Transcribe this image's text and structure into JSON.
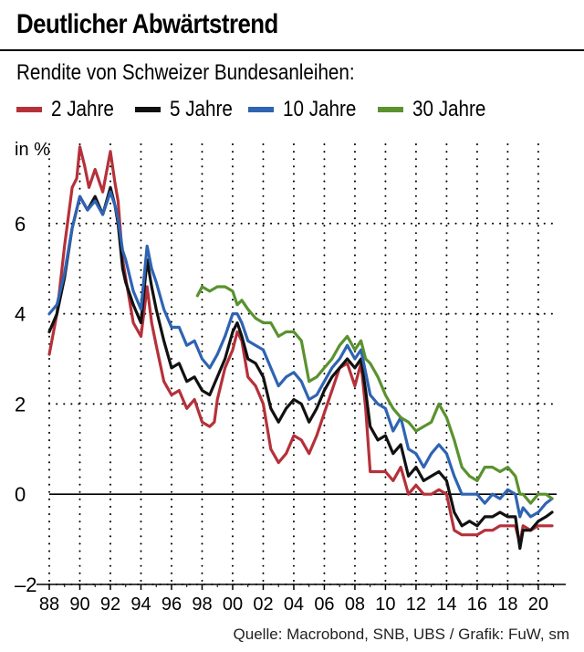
{
  "title": "Deutlicher Abwärtstrend",
  "subtitle": "Rendite von Schweizer Bundesanleihen:",
  "source": "Quelle:  Macrobond, SNB, UBS / Grafik: FuW, sm",
  "chart_data": {
    "type": "line",
    "ylabel": "in %",
    "ylim": [
      -2,
      8
    ],
    "yticks": [
      -2,
      0,
      2,
      4,
      6
    ],
    "ytick_labels": [
      "–2",
      "0",
      "2",
      "4",
      "6"
    ],
    "xlim": [
      1988,
      2021.2
    ],
    "xticks": [
      1988,
      1990,
      1992,
      1994,
      1996,
      1998,
      2000,
      2002,
      2004,
      2006,
      2008,
      2010,
      2012,
      2014,
      2016,
      2018,
      2020
    ],
    "xtick_labels": [
      "88",
      "90",
      "92",
      "94",
      "96",
      "98",
      "00",
      "02",
      "04",
      "06",
      "08",
      "10",
      "12",
      "14",
      "16",
      "18",
      "20"
    ],
    "grid": "dotted",
    "legend_position": "top",
    "series": [
      {
        "name": "2 Jahre",
        "color": "#b5313a",
        "x": [
          1988.0,
          1988.5,
          1989.0,
          1989.5,
          1989.8,
          1990.0,
          1990.3,
          1990.6,
          1991.0,
          1991.5,
          1992.0,
          1992.3,
          1992.5,
          1992.8,
          1993.0,
          1993.5,
          1994.0,
          1994.4,
          1994.7,
          1995.0,
          1995.5,
          1996.0,
          1996.5,
          1997.0,
          1997.5,
          1998.0,
          1998.5,
          1998.8,
          1999.0,
          1999.5,
          2000.0,
          2000.3,
          2000.6,
          2001.0,
          2001.5,
          2002.0,
          2002.5,
          2003.0,
          2003.5,
          2004.0,
          2004.5,
          2005.0,
          2005.5,
          2006.0,
          2006.5,
          2007.0,
          2007.5,
          2008.0,
          2008.4,
          2008.7,
          2009.0,
          2009.5,
          2010.0,
          2010.5,
          2011.0,
          2011.5,
          2012.0,
          2012.5,
          2013.0,
          2013.5,
          2014.0,
          2014.5,
          2015.0,
          2015.5,
          2016.0,
          2016.5,
          2017.0,
          2017.5,
          2018.0,
          2018.5,
          2018.8,
          2019.0,
          2019.5,
          2020.0,
          2020.5,
          2020.9
        ],
        "y": [
          3.1,
          4.0,
          5.5,
          6.8,
          7.0,
          7.7,
          7.3,
          6.8,
          7.2,
          6.7,
          7.6,
          6.9,
          6.5,
          5.2,
          4.8,
          3.8,
          3.5,
          4.6,
          3.8,
          3.3,
          2.5,
          2.2,
          2.3,
          1.9,
          2.1,
          1.6,
          1.5,
          1.6,
          2.1,
          2.8,
          3.2,
          3.6,
          3.4,
          2.6,
          2.4,
          2.0,
          1.0,
          0.7,
          0.9,
          1.3,
          1.2,
          0.9,
          1.3,
          1.8,
          2.3,
          2.8,
          2.9,
          2.4,
          2.9,
          1.9,
          0.5,
          0.5,
          0.5,
          0.3,
          0.6,
          0.0,
          0.2,
          0.0,
          0.0,
          0.1,
          0.0,
          -0.8,
          -0.9,
          -0.9,
          -0.9,
          -0.8,
          -0.8,
          -0.7,
          -0.7,
          -0.7,
          -1.1,
          -0.7,
          -0.8,
          -0.7,
          -0.7,
          -0.7
        ]
      },
      {
        "name": "5 Jahre",
        "color": "#111111",
        "x": [
          1988.0,
          1988.5,
          1989.0,
          1989.5,
          1990.0,
          1990.5,
          1991.0,
          1991.5,
          1992.0,
          1992.3,
          1992.5,
          1992.8,
          1993.0,
          1993.5,
          1994.0,
          1994.4,
          1994.7,
          1995.0,
          1995.5,
          1996.0,
          1996.5,
          1997.0,
          1997.5,
          1998.0,
          1998.5,
          1999.0,
          1999.5,
          2000.0,
          2000.3,
          2000.6,
          2001.0,
          2001.5,
          2002.0,
          2002.5,
          2003.0,
          2003.5,
          2004.0,
          2004.5,
          2005.0,
          2005.5,
          2006.0,
          2006.5,
          2007.0,
          2007.5,
          2008.0,
          2008.4,
          2008.7,
          2009.0,
          2009.5,
          2010.0,
          2010.5,
          2011.0,
          2011.5,
          2012.0,
          2012.5,
          2013.0,
          2013.5,
          2014.0,
          2014.5,
          2015.0,
          2015.5,
          2016.0,
          2016.5,
          2017.0,
          2017.5,
          2018.0,
          2018.5,
          2018.8,
          2019.0,
          2019.5,
          2020.0,
          2020.5,
          2020.9
        ],
        "y": [
          3.6,
          4.0,
          4.8,
          5.9,
          6.6,
          6.3,
          6.6,
          6.2,
          6.8,
          6.4,
          6.0,
          5.0,
          4.7,
          4.2,
          3.8,
          5.2,
          4.6,
          4.1,
          3.4,
          2.8,
          2.9,
          2.5,
          2.6,
          2.3,
          2.2,
          2.6,
          3.0,
          3.6,
          3.8,
          3.5,
          3.0,
          2.9,
          2.6,
          1.9,
          1.6,
          1.9,
          2.1,
          2.0,
          1.6,
          1.9,
          2.3,
          2.6,
          2.8,
          3.0,
          2.8,
          3.0,
          2.3,
          1.5,
          1.2,
          1.3,
          0.9,
          1.1,
          0.4,
          0.6,
          0.3,
          0.4,
          0.5,
          0.3,
          -0.4,
          -0.7,
          -0.6,
          -0.7,
          -0.5,
          -0.5,
          -0.4,
          -0.5,
          -0.5,
          -1.2,
          -0.8,
          -0.8,
          -0.6,
          -0.5,
          -0.4
        ]
      },
      {
        "name": "10 Jahre",
        "color": "#2f63b3",
        "x": [
          1988.0,
          1988.5,
          1989.0,
          1989.5,
          1990.0,
          1990.5,
          1991.0,
          1991.5,
          1992.0,
          1992.3,
          1992.5,
          1992.8,
          1993.0,
          1993.5,
          1994.0,
          1994.4,
          1994.7,
          1995.0,
          1995.5,
          1996.0,
          1996.5,
          1997.0,
          1997.5,
          1998.0,
          1998.5,
          1999.0,
          1999.5,
          2000.0,
          2000.3,
          2000.6,
          2001.0,
          2001.5,
          2002.0,
          2002.5,
          2003.0,
          2003.5,
          2004.0,
          2004.5,
          2005.0,
          2005.5,
          2006.0,
          2006.5,
          2007.0,
          2007.5,
          2008.0,
          2008.4,
          2008.7,
          2009.0,
          2009.5,
          2010.0,
          2010.5,
          2011.0,
          2011.5,
          2012.0,
          2012.5,
          2013.0,
          2013.5,
          2014.0,
          2014.5,
          2015.0,
          2015.5,
          2016.0,
          2016.5,
          2017.0,
          2017.5,
          2018.0,
          2018.5,
          2018.8,
          2019.0,
          2019.5,
          2020.0,
          2020.5,
          2020.9
        ],
        "y": [
          4.0,
          4.2,
          4.9,
          5.9,
          6.6,
          6.3,
          6.5,
          6.2,
          6.7,
          6.4,
          6.1,
          5.4,
          5.2,
          4.5,
          4.1,
          5.5,
          5.0,
          4.7,
          4.1,
          3.7,
          3.7,
          3.3,
          3.4,
          3.0,
          2.8,
          3.1,
          3.5,
          4.0,
          4.0,
          3.8,
          3.4,
          3.3,
          3.2,
          2.8,
          2.4,
          2.6,
          2.7,
          2.5,
          2.1,
          2.2,
          2.5,
          2.8,
          3.0,
          3.3,
          3.0,
          3.2,
          2.7,
          2.2,
          2.0,
          1.9,
          1.4,
          1.7,
          1.0,
          0.9,
          0.6,
          0.9,
          1.1,
          0.9,
          0.4,
          0.0,
          0.0,
          0.0,
          -0.2,
          0.0,
          -0.1,
          0.1,
          0.0,
          -0.5,
          -0.3,
          -0.5,
          -0.4,
          -0.2,
          -0.1
        ]
      },
      {
        "name": "30 Jahre",
        "color": "#5a922f",
        "x": [
          1997.7,
          1998.0,
          1998.5,
          1999.0,
          1999.5,
          2000.0,
          2000.3,
          2000.6,
          2001.0,
          2001.5,
          2002.0,
          2002.5,
          2003.0,
          2003.5,
          2004.0,
          2004.5,
          2005.0,
          2005.5,
          2006.0,
          2006.5,
          2007.0,
          2007.5,
          2008.0,
          2008.4,
          2008.7,
          2009.0,
          2009.5,
          2010.0,
          2010.5,
          2011.0,
          2011.5,
          2012.0,
          2012.5,
          2013.0,
          2013.5,
          2014.0,
          2014.5,
          2015.0,
          2015.5,
          2016.0,
          2016.5,
          2017.0,
          2017.5,
          2018.0,
          2018.5,
          2018.8,
          2019.0,
          2019.5,
          2020.0,
          2020.5,
          2020.9
        ],
        "y": [
          4.4,
          4.6,
          4.5,
          4.6,
          4.6,
          4.5,
          4.2,
          4.3,
          4.1,
          3.9,
          3.8,
          3.8,
          3.5,
          3.6,
          3.6,
          3.4,
          2.5,
          2.6,
          2.8,
          3.0,
          3.3,
          3.5,
          3.2,
          3.4,
          3.0,
          2.9,
          2.6,
          2.2,
          1.9,
          1.7,
          1.6,
          1.4,
          1.5,
          1.6,
          2.0,
          1.7,
          1.2,
          0.6,
          0.4,
          0.3,
          0.6,
          0.6,
          0.5,
          0.6,
          0.4,
          0.0,
          0.0,
          -0.2,
          0.0,
          0.0,
          -0.1
        ]
      }
    ]
  }
}
